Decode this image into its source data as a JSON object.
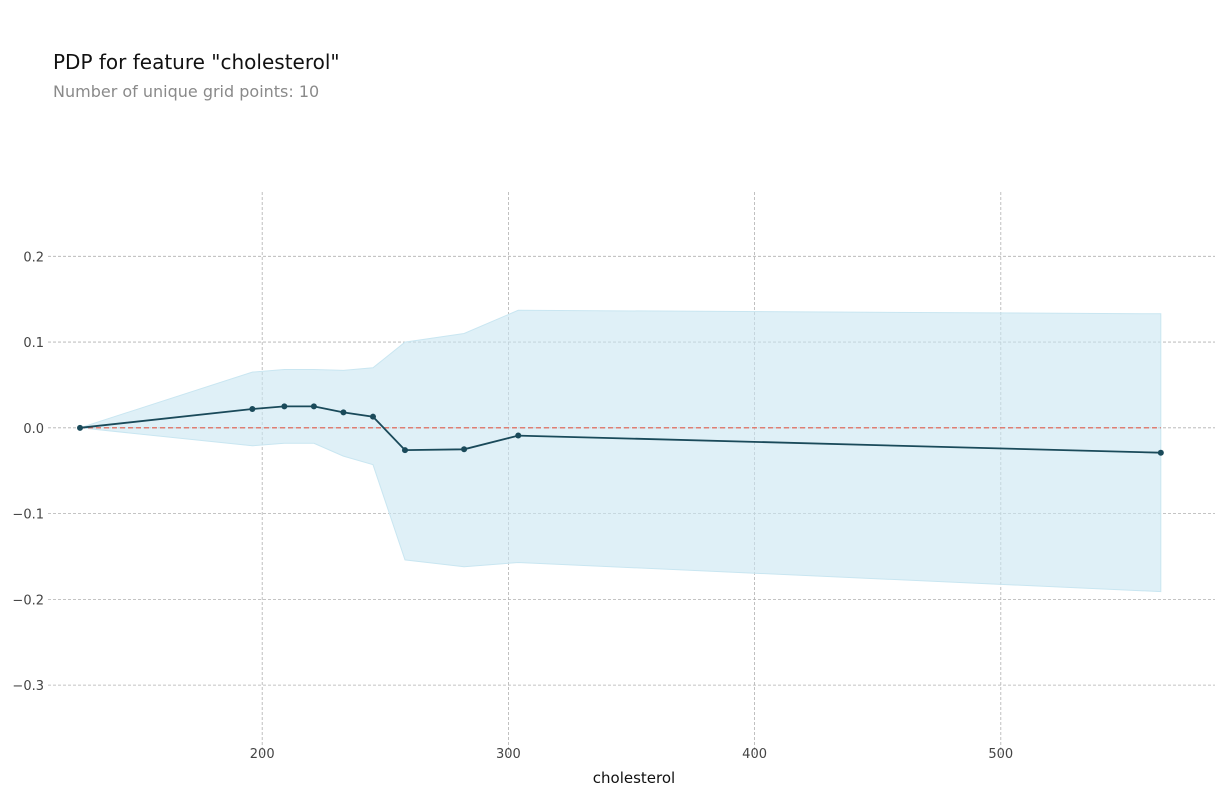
{
  "header": {
    "title": "PDP for feature \"cholesterol\"",
    "subtitle": "Number of unique grid points: 10"
  },
  "colors": {
    "line": "#1a4a5a",
    "band": "#c9e6f1",
    "zero_line": "#e05a4a",
    "grid": "#b0b0b0"
  },
  "chart_data": {
    "type": "line",
    "title": "PDP for feature \"cholesterol\"",
    "subtitle": "Number of unique grid points: 10",
    "xlabel": "cholesterol",
    "ylabel": "",
    "xlim": [
      113,
      587
    ],
    "ylim": [
      -0.385,
      0.275
    ],
    "x_ticks": [
      200,
      300,
      400,
      500
    ],
    "x_tick_labels": [
      "200",
      "300",
      "400",
      "500"
    ],
    "y_ticks": [
      0.2,
      0.1,
      0.0,
      -0.1,
      -0.2,
      -0.3
    ],
    "y_tick_labels": [
      "0.2",
      "0.1",
      "0.0",
      "−0.1",
      "−0.2",
      "−0.3"
    ],
    "grid": true,
    "series": [
      {
        "values_x": [
          126,
          196,
          209,
          221,
          233,
          245,
          258,
          282,
          304,
          565
        ],
        "values_y": [
          0.0,
          0.022,
          0.025,
          0.025,
          0.018,
          0.013,
          -0.026,
          -0.025,
          -0.009,
          -0.029
        ]
      }
    ],
    "band": {
      "x": [
        126,
        196,
        209,
        221,
        233,
        245,
        258,
        282,
        304,
        565
      ],
      "upper": [
        0.0,
        0.065,
        0.068,
        0.068,
        0.067,
        0.07,
        0.1,
        0.11,
        0.137,
        0.133
      ],
      "lower": [
        0.0,
        -0.021,
        -0.018,
        -0.018,
        -0.033,
        -0.043,
        -0.154,
        -0.162,
        -0.157,
        -0.191
      ]
    },
    "reference_line_y": 0.0
  }
}
